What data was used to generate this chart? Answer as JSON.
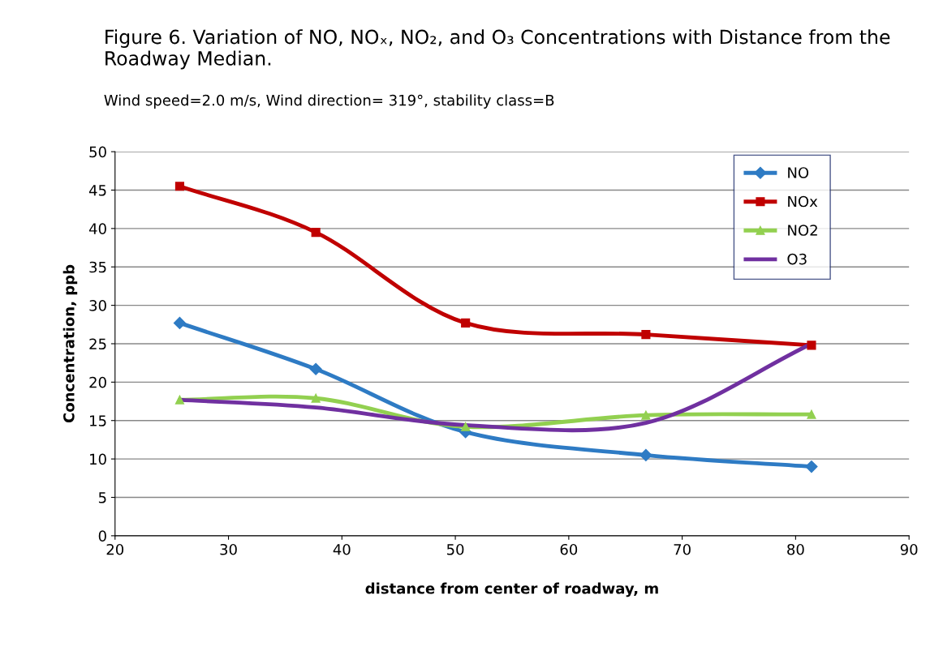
{
  "chart_data": {
    "type": "line",
    "title": "Figure 6. Variation of NO, NOₓ, NO₂, and O₃ Concentrations with Distance from the Roadway Median.",
    "subtitle": "Wind speed=2.0 m/s, Wind direction= 319°, stability class=B",
    "xlabel": "distance from center of roadway, m",
    "ylabel": "Concentration, ppb",
    "x": [
      25.7,
      37.7,
      50.9,
      66.8,
      81.4
    ],
    "series": [
      {
        "name": "NO",
        "color": "#2e7bc4",
        "marker": "diamond",
        "values": [
          27.7,
          21.7,
          13.5,
          10.5,
          9.0
        ]
      },
      {
        "name": "NOx",
        "color": "#c00000",
        "marker": "square",
        "values": [
          45.5,
          39.5,
          27.7,
          26.2,
          24.8
        ]
      },
      {
        "name": "NO2",
        "color": "#92d050",
        "marker": "triangle",
        "values": [
          17.7,
          17.9,
          14.2,
          15.7,
          15.8
        ]
      },
      {
        "name": "O3",
        "color": "#7030a0",
        "marker": "none",
        "values": [
          17.7,
          16.7,
          14.4,
          14.7,
          25.0
        ]
      }
    ],
    "xlim": [
      20,
      90
    ],
    "xticks": [
      20,
      30,
      40,
      50,
      60,
      70,
      80,
      90
    ],
    "ylim": [
      0,
      50
    ],
    "yticks": [
      0,
      5,
      10,
      15,
      20,
      25,
      30,
      35,
      40,
      45,
      50
    ],
    "grid": "y",
    "legend": "top right",
    "line_style": "solid"
  }
}
